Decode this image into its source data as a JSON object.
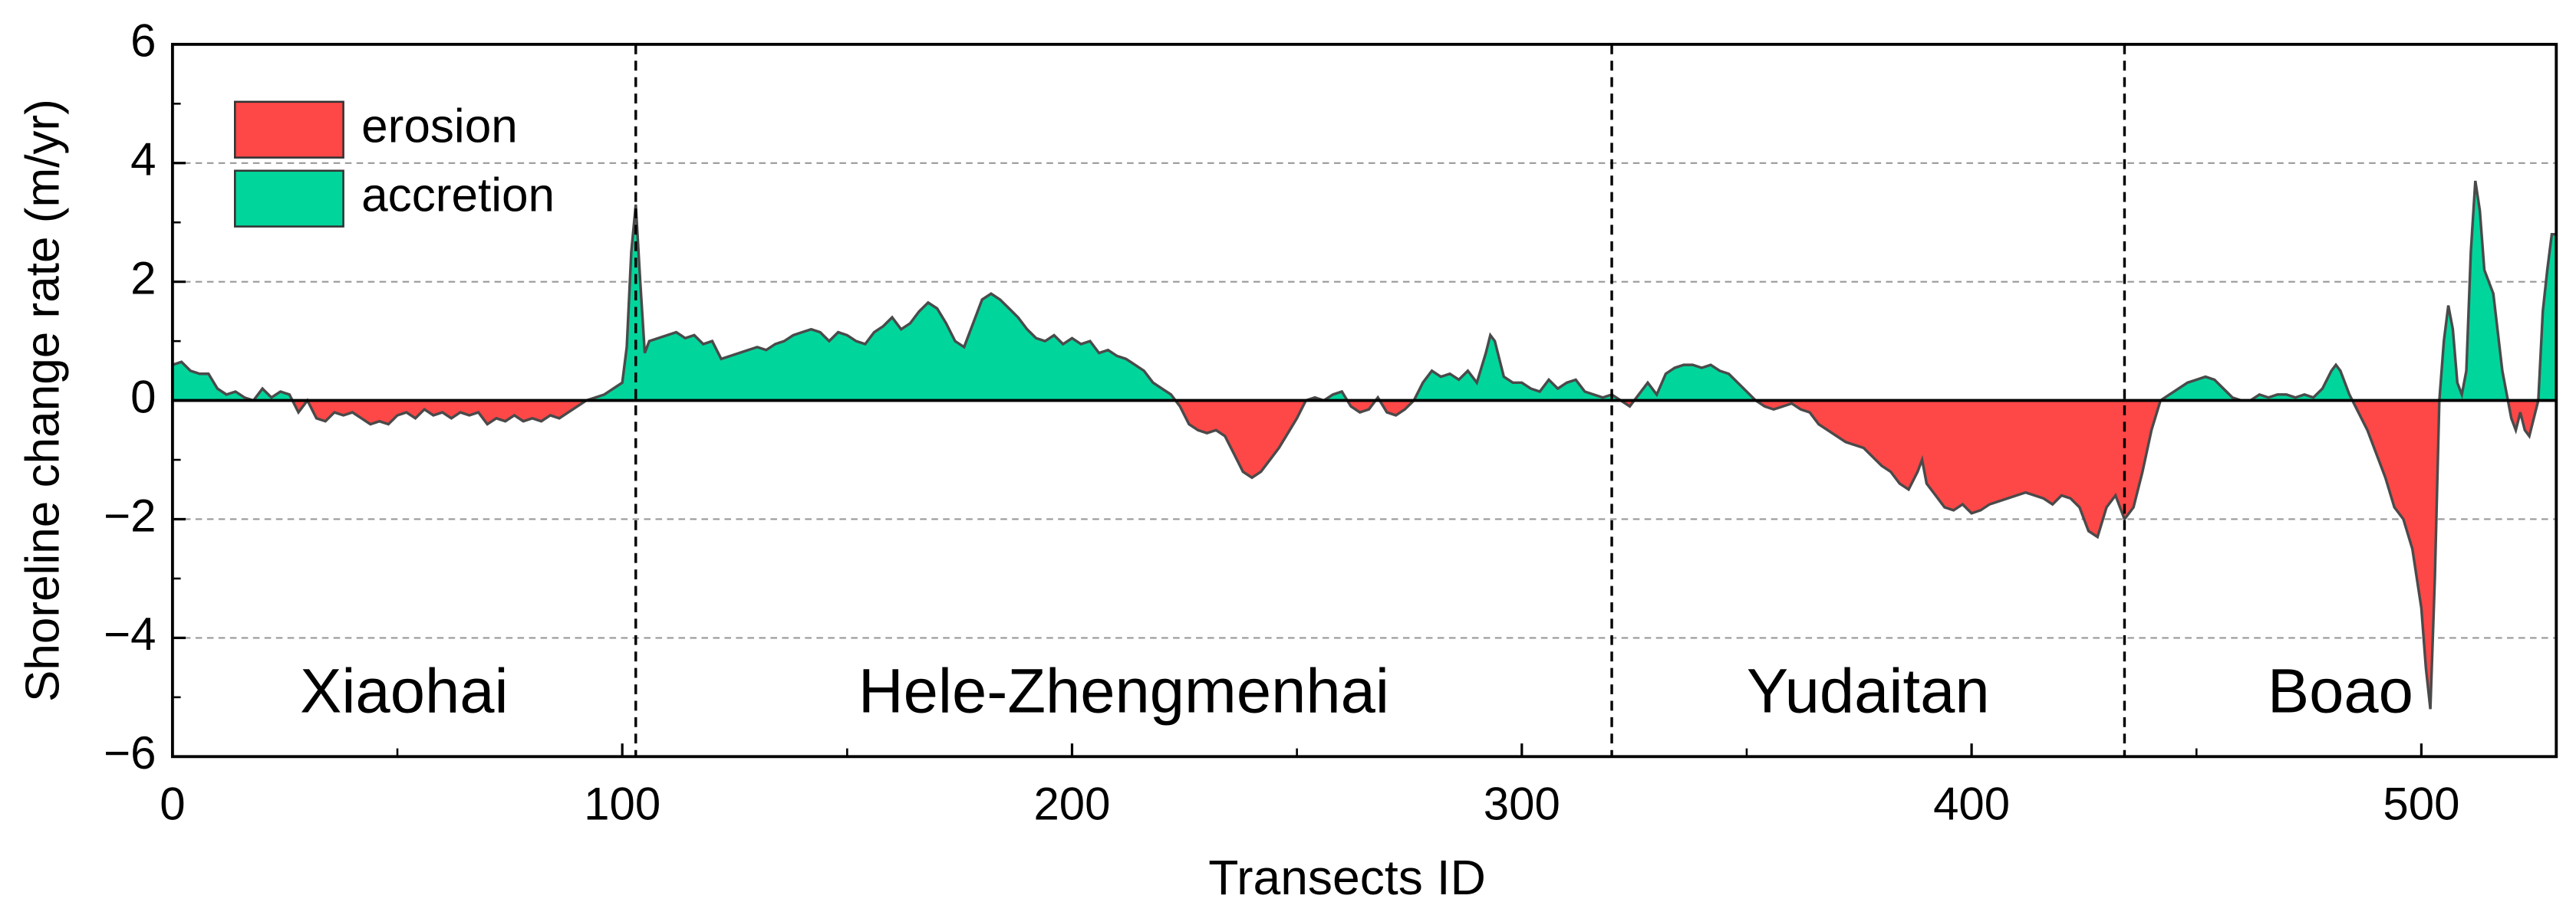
{
  "chart_data": {
    "type": "area",
    "xlabel": "Transects ID",
    "ylabel": "Shoreline change rate (m/yr)",
    "legend": [
      {
        "name": "erosion",
        "color": "#fe4747"
      },
      {
        "name": "accretion",
        "color": "#00d59c"
      }
    ],
    "legend_position": "upper left",
    "grid": true,
    "xlim": [
      0,
      530
    ],
    "xticks": [
      0,
      100,
      200,
      300,
      400,
      500
    ],
    "ylim": [
      -6,
      6
    ],
    "yticks": [
      {
        "value": -6,
        "label": "−6"
      },
      {
        "value": -4,
        "label": "−4"
      },
      {
        "value": -2,
        "label": "−2"
      },
      0,
      2,
      4,
      6
    ],
    "dividers": [
      103,
      320,
      434
    ],
    "regions": [
      "Xiaohai",
      "Hele-Zhengmenhai",
      "Yudaitan",
      "Boao"
    ],
    "x": [
      0,
      2,
      4,
      6,
      8,
      10,
      12,
      14,
      16,
      18,
      20,
      22,
      24,
      26,
      28,
      30,
      32,
      34,
      36,
      38,
      40,
      42,
      44,
      46,
      48,
      50,
      52,
      54,
      56,
      58,
      60,
      62,
      64,
      66,
      68,
      70,
      72,
      74,
      76,
      78,
      80,
      82,
      84,
      86,
      88,
      90,
      92,
      94,
      96,
      98,
      100,
      101,
      102,
      103,
      104,
      105,
      106,
      108,
      110,
      112,
      114,
      116,
      118,
      120,
      122,
      124,
      126,
      128,
      130,
      132,
      134,
      136,
      138,
      140,
      142,
      144,
      146,
      148,
      150,
      152,
      154,
      156,
      158,
      160,
      162,
      164,
      166,
      168,
      170,
      172,
      174,
      176,
      178,
      180,
      182,
      184,
      186,
      188,
      190,
      192,
      194,
      196,
      198,
      200,
      202,
      204,
      206,
      208,
      210,
      212,
      214,
      216,
      218,
      220,
      222,
      224,
      226,
      228,
      230,
      232,
      234,
      236,
      238,
      240,
      242,
      244,
      246,
      248,
      250,
      252,
      254,
      256,
      258,
      260,
      262,
      264,
      266,
      268,
      270,
      272,
      274,
      276,
      278,
      280,
      282,
      284,
      286,
      288,
      290,
      292,
      293,
      294,
      296,
      298,
      300,
      302,
      304,
      306,
      308,
      310,
      312,
      314,
      316,
      318,
      320,
      322,
      324,
      326,
      328,
      330,
      332,
      334,
      336,
      338,
      340,
      342,
      344,
      346,
      348,
      350,
      352,
      354,
      356,
      358,
      360,
      362,
      364,
      366,
      368,
      370,
      372,
      374,
      376,
      378,
      380,
      382,
      384,
      386,
      388,
      389,
      390,
      392,
      394,
      396,
      398,
      400,
      402,
      404,
      406,
      408,
      410,
      412,
      414,
      416,
      418,
      420,
      422,
      424,
      426,
      428,
      430,
      432,
      434,
      436,
      438,
      440,
      442,
      444,
      446,
      448,
      450,
      452,
      454,
      456,
      458,
      460,
      462,
      464,
      466,
      468,
      470,
      472,
      474,
      476,
      478,
      480,
      481,
      482,
      484,
      486,
      488,
      490,
      492,
      494,
      496,
      498,
      500,
      501,
      502,
      503,
      504,
      505,
      506,
      507,
      508,
      509,
      510,
      511,
      512,
      513,
      514,
      516,
      518,
      520,
      521,
      522,
      523,
      524,
      525,
      526,
      527,
      528,
      529,
      530
    ],
    "values": [
      0.6,
      0.65,
      0.5,
      0.45,
      0.45,
      0.2,
      0.1,
      0.15,
      0.05,
      0,
      0.2,
      0.05,
      0.15,
      0.1,
      -0.2,
      0,
      -0.3,
      -0.35,
      -0.2,
      -0.25,
      -0.2,
      -0.3,
      -0.4,
      -0.35,
      -0.4,
      -0.25,
      -0.2,
      -0.3,
      -0.15,
      -0.25,
      -0.2,
      -0.3,
      -0.2,
      -0.25,
      -0.2,
      -0.4,
      -0.3,
      -0.35,
      -0.25,
      -0.35,
      -0.3,
      -0.35,
      -0.25,
      -0.3,
      -0.2,
      -0.1,
      0,
      0.05,
      0.1,
      0.2,
      0.3,
      0.9,
      2.5,
      3.3,
      2.0,
      0.8,
      1.0,
      1.05,
      1.1,
      1.15,
      1.05,
      1.1,
      0.95,
      1.0,
      0.7,
      0.75,
      0.8,
      0.85,
      0.9,
      0.85,
      0.95,
      1.0,
      1.1,
      1.15,
      1.2,
      1.15,
      1.0,
      1.15,
      1.1,
      1.0,
      0.95,
      1.15,
      1.25,
      1.4,
      1.2,
      1.3,
      1.5,
      1.65,
      1.55,
      1.3,
      1.0,
      0.9,
      1.3,
      1.7,
      1.8,
      1.7,
      1.55,
      1.4,
      1.2,
      1.05,
      1.0,
      1.1,
      0.95,
      1.05,
      0.95,
      1.0,
      0.8,
      0.85,
      0.75,
      0.7,
      0.6,
      0.5,
      0.3,
      0.2,
      0.1,
      -0.1,
      -0.4,
      -0.5,
      -0.55,
      -0.5,
      -0.6,
      -0.9,
      -1.2,
      -1.3,
      -1.2,
      -1.0,
      -0.8,
      -0.55,
      -0.3,
      0,
      0.05,
      0,
      0.1,
      0.15,
      -0.1,
      -0.2,
      -0.15,
      0.05,
      -0.2,
      -0.25,
      -0.15,
      0,
      0.3,
      0.5,
      0.4,
      0.45,
      0.35,
      0.5,
      0.3,
      0.8,
      1.1,
      1.0,
      0.4,
      0.3,
      0.3,
      0.2,
      0.15,
      0.35,
      0.2,
      0.3,
      0.35,
      0.15,
      0.1,
      0.05,
      0.1,
      0,
      -0.1,
      0.1,
      0.3,
      0.1,
      0.45,
      0.55,
      0.6,
      0.6,
      0.55,
      0.6,
      0.5,
      0.45,
      0.3,
      0.15,
      0,
      -0.1,
      -0.15,
      -0.1,
      -0.05,
      -0.15,
      -0.2,
      -0.4,
      -0.5,
      -0.6,
      -0.7,
      -0.75,
      -0.8,
      -0.95,
      -1.1,
      -1.2,
      -1.4,
      -1.5,
      -1.2,
      -1.0,
      -1.4,
      -1.6,
      -1.8,
      -1.85,
      -1.75,
      -1.9,
      -1.85,
      -1.75,
      -1.7,
      -1.65,
      -1.6,
      -1.55,
      -1.6,
      -1.65,
      -1.75,
      -1.6,
      -1.65,
      -1.8,
      -2.2,
      -2.3,
      -1.8,
      -1.6,
      -2.0,
      -1.8,
      -1.2,
      -0.5,
      0,
      0.1,
      0.2,
      0.3,
      0.35,
      0.4,
      0.35,
      0.2,
      0.05,
      0,
      0,
      0.1,
      0.05,
      0.1,
      0.1,
      0.05,
      0.1,
      0.05,
      0.2,
      0.5,
      0.6,
      0.5,
      0.1,
      -0.2,
      -0.5,
      -0.9,
      -1.3,
      -1.8,
      -2.0,
      -2.5,
      -3.5,
      -4.5,
      -5.2,
      -3.0,
      0,
      1.0,
      1.6,
      1.2,
      0.3,
      0.1,
      0.5,
      2.5,
      3.7,
      3.2,
      2.2,
      1.8,
      0.5,
      -0.3,
      -0.5,
      -0.2,
      -0.5,
      -0.6,
      -0.3,
      0,
      1.5,
      2.2,
      2.8,
      2.8
    ]
  }
}
